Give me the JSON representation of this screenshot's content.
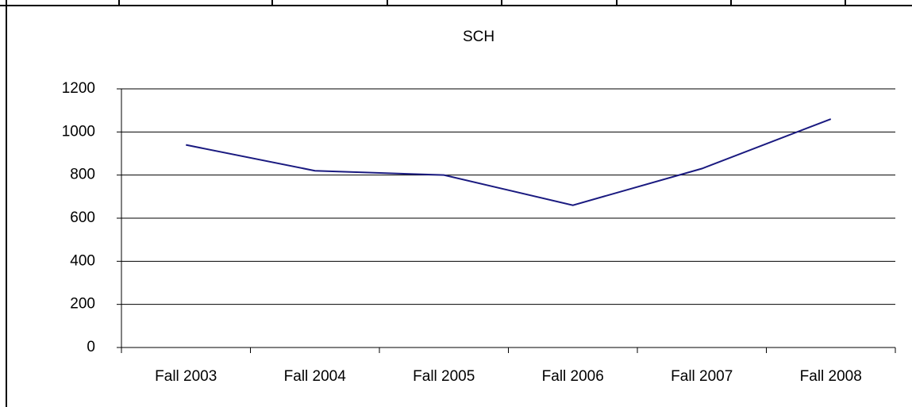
{
  "chart_data": {
    "type": "line",
    "title": "SCH",
    "categories": [
      "Fall 2003",
      "Fall 2004",
      "Fall 2005",
      "Fall 2006",
      "Fall 2007",
      "Fall 2008"
    ],
    "series": [
      {
        "name": "SCH",
        "color": "#1a1a80",
        "values": [
          940,
          820,
          800,
          660,
          830,
          1060
        ]
      }
    ],
    "ylim": [
      0,
      1200
    ],
    "yticks": [
      0,
      200,
      400,
      600,
      800,
      1000,
      1200
    ],
    "grid": true
  }
}
